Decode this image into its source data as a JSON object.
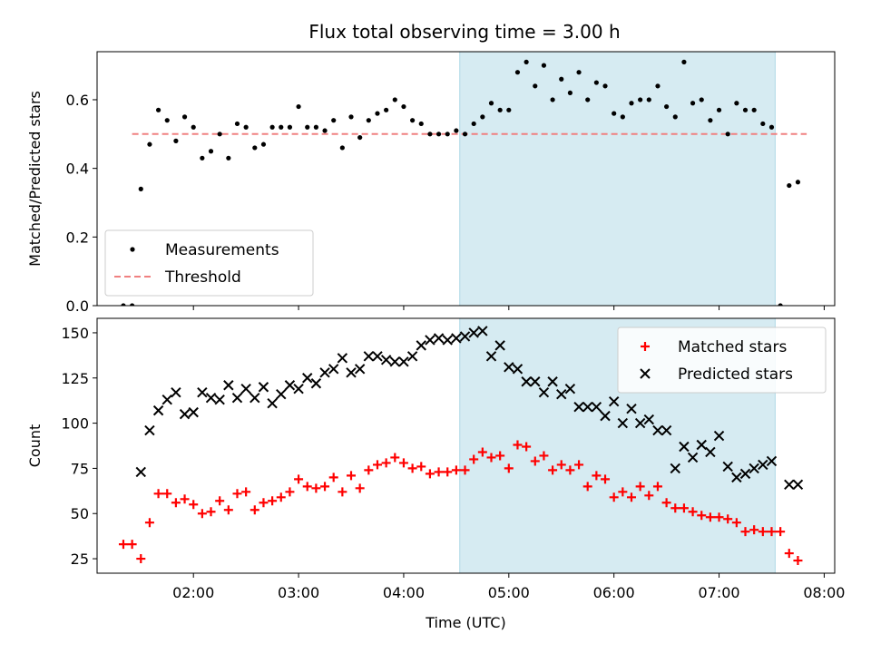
{
  "title": "Flux total observing time = 3.00 h",
  "chart_data": [
    {
      "type": "scatter",
      "name": "ratio-panel",
      "ylabel": "Matched/Predicted stars",
      "xlim": [
        "01:05",
        "08:06"
      ],
      "ylim": [
        0,
        0.74
      ],
      "yticks": [
        0.0,
        0.2,
        0.4,
        0.6
      ],
      "ytick_labels": [
        "0.0",
        "0.2",
        "0.4",
        "0.6"
      ],
      "legend_position": "lower-left",
      "highlight_span": {
        "start": "04:32",
        "end": "07:32",
        "color": "#add8e6"
      },
      "threshold": {
        "name": "Threshold",
        "value": 0.5,
        "from": "01:25",
        "to": "07:50",
        "color": "#f08080"
      },
      "series": [
        {
          "name": "Measurements",
          "marker": "dot",
          "color": "#000000",
          "x": [
            "01:20",
            "01:25",
            "01:30",
            "01:35",
            "01:40",
            "01:45",
            "01:50",
            "01:55",
            "02:00",
            "02:05",
            "02:10",
            "02:15",
            "02:20",
            "02:25",
            "02:30",
            "02:35",
            "02:40",
            "02:45",
            "02:50",
            "02:55",
            "03:00",
            "03:05",
            "03:10",
            "03:15",
            "03:20",
            "03:25",
            "03:30",
            "03:35",
            "03:40",
            "03:45",
            "03:50",
            "03:55",
            "04:00",
            "04:05",
            "04:10",
            "04:15",
            "04:20",
            "04:25",
            "04:30",
            "04:35",
            "04:40",
            "04:45",
            "04:50",
            "04:55",
            "05:00",
            "05:05",
            "05:10",
            "05:15",
            "05:20",
            "05:25",
            "05:30",
            "05:35",
            "05:40",
            "05:45",
            "05:50",
            "05:55",
            "06:00",
            "06:05",
            "06:10",
            "06:15",
            "06:20",
            "06:25",
            "06:30",
            "06:35",
            "06:40",
            "06:45",
            "06:50",
            "06:55",
            "07:00",
            "07:05",
            "07:10",
            "07:15",
            "07:20",
            "07:25",
            "07:30",
            "07:35",
            "07:40",
            "07:45"
          ],
          "y": [
            0.0,
            0.0,
            0.34,
            0.47,
            0.57,
            0.54,
            0.48,
            0.55,
            0.52,
            0.43,
            0.45,
            0.5,
            0.43,
            0.53,
            0.52,
            0.46,
            0.47,
            0.52,
            0.52,
            0.52,
            0.58,
            0.52,
            0.52,
            0.51,
            0.54,
            0.46,
            0.55,
            0.49,
            0.54,
            0.56,
            0.57,
            0.6,
            0.58,
            0.54,
            0.53,
            0.5,
            0.5,
            0.5,
            0.51,
            0.5,
            0.53,
            0.55,
            0.59,
            0.57,
            0.57,
            0.68,
            0.71,
            0.64,
            0.7,
            0.6,
            0.66,
            0.62,
            0.68,
            0.6,
            0.65,
            0.64,
            0.56,
            0.55,
            0.59,
            0.6,
            0.6,
            0.64,
            0.58,
            0.55,
            0.71,
            0.59,
            0.6,
            0.54,
            0.57,
            0.5,
            0.59,
            0.57,
            0.57,
            0.53,
            0.52,
            0.0,
            0.35,
            0.36
          ]
        }
      ]
    },
    {
      "type": "scatter",
      "name": "count-panel",
      "xlabel": "Time (UTC)",
      "ylabel": "Count",
      "xlim": [
        "01:05",
        "08:06"
      ],
      "xticks": [
        "02:00",
        "03:00",
        "04:00",
        "05:00",
        "06:00",
        "07:00",
        "08:00"
      ],
      "ylim": [
        17,
        158
      ],
      "yticks": [
        25,
        50,
        75,
        100,
        125,
        150
      ],
      "ytick_labels": [
        "25",
        "50",
        "75",
        "100",
        "125",
        "150"
      ],
      "legend_position": "upper-right",
      "highlight_span": {
        "start": "04:32",
        "end": "07:32",
        "color": "#add8e6"
      },
      "series": [
        {
          "name": "Matched stars",
          "marker": "plus",
          "color": "#ff0000",
          "x": [
            "01:20",
            "01:25",
            "01:30",
            "01:35",
            "01:40",
            "01:45",
            "01:50",
            "01:55",
            "02:00",
            "02:05",
            "02:10",
            "02:15",
            "02:20",
            "02:25",
            "02:30",
            "02:35",
            "02:40",
            "02:45",
            "02:50",
            "02:55",
            "03:00",
            "03:05",
            "03:10",
            "03:15",
            "03:20",
            "03:25",
            "03:30",
            "03:35",
            "03:40",
            "03:45",
            "03:50",
            "03:55",
            "04:00",
            "04:05",
            "04:10",
            "04:15",
            "04:20",
            "04:25",
            "04:30",
            "04:35",
            "04:40",
            "04:45",
            "04:50",
            "04:55",
            "05:00",
            "05:05",
            "05:10",
            "05:15",
            "05:20",
            "05:25",
            "05:30",
            "05:35",
            "05:40",
            "05:45",
            "05:50",
            "05:55",
            "06:00",
            "06:05",
            "06:10",
            "06:15",
            "06:20",
            "06:25",
            "06:30",
            "06:35",
            "06:40",
            "06:45",
            "06:50",
            "06:55",
            "07:00",
            "07:05",
            "07:10",
            "07:15",
            "07:20",
            "07:25",
            "07:30",
            "07:35",
            "07:40",
            "07:45"
          ],
          "y": [
            33,
            33,
            25,
            45,
            61,
            61,
            56,
            58,
            55,
            50,
            51,
            57,
            52,
            61,
            62,
            52,
            56,
            57,
            59,
            62,
            69,
            65,
            64,
            65,
            70,
            62,
            71,
            64,
            74,
            77,
            78,
            81,
            78,
            75,
            76,
            72,
            73,
            73,
            74,
            74,
            80,
            84,
            81,
            82,
            75,
            88,
            87,
            79,
            82,
            74,
            77,
            74,
            77,
            65,
            71,
            69,
            59,
            62,
            59,
            65,
            60,
            65,
            56,
            53,
            53,
            51,
            49,
            48,
            48,
            47,
            45,
            40,
            41,
            40,
            40,
            40,
            28,
            24
          ]
        },
        {
          "name": "Predicted stars",
          "marker": "x",
          "color": "#000000",
          "x": [
            "01:30",
            "01:35",
            "01:40",
            "01:45",
            "01:50",
            "01:55",
            "02:00",
            "02:05",
            "02:10",
            "02:15",
            "02:20",
            "02:25",
            "02:30",
            "02:35",
            "02:40",
            "02:45",
            "02:50",
            "02:55",
            "03:00",
            "03:05",
            "03:10",
            "03:15",
            "03:20",
            "03:25",
            "03:30",
            "03:35",
            "03:40",
            "03:45",
            "03:50",
            "03:55",
            "04:00",
            "04:05",
            "04:10",
            "04:15",
            "04:20",
            "04:25",
            "04:30",
            "04:35",
            "04:40",
            "04:45",
            "04:50",
            "04:55",
            "05:00",
            "05:05",
            "05:10",
            "05:15",
            "05:20",
            "05:25",
            "05:30",
            "05:35",
            "05:40",
            "05:45",
            "05:50",
            "05:55",
            "06:00",
            "06:05",
            "06:10",
            "06:15",
            "06:20",
            "06:25",
            "06:30",
            "06:35",
            "06:40",
            "06:45",
            "06:50",
            "06:55",
            "07:00",
            "07:05",
            "07:10",
            "07:15",
            "07:20",
            "07:25",
            "07:30",
            "07:40",
            "07:45"
          ],
          "y": [
            73,
            96,
            107,
            113,
            117,
            105,
            106,
            117,
            114,
            113,
            121,
            114,
            119,
            114,
            120,
            111,
            116,
            121,
            119,
            125,
            122,
            128,
            130,
            136,
            128,
            130,
            137,
            137,
            135,
            134,
            134,
            137,
            143,
            146,
            147,
            146,
            147,
            148,
            150,
            151,
            137,
            143,
            131,
            130,
            123,
            123,
            117,
            123,
            116,
            119,
            109,
            109,
            109,
            104,
            112,
            100,
            108,
            100,
            102,
            96,
            96,
            75,
            87,
            81,
            88,
            84,
            93,
            76,
            70,
            72,
            75,
            77,
            79,
            66,
            66
          ]
        }
      ]
    }
  ]
}
